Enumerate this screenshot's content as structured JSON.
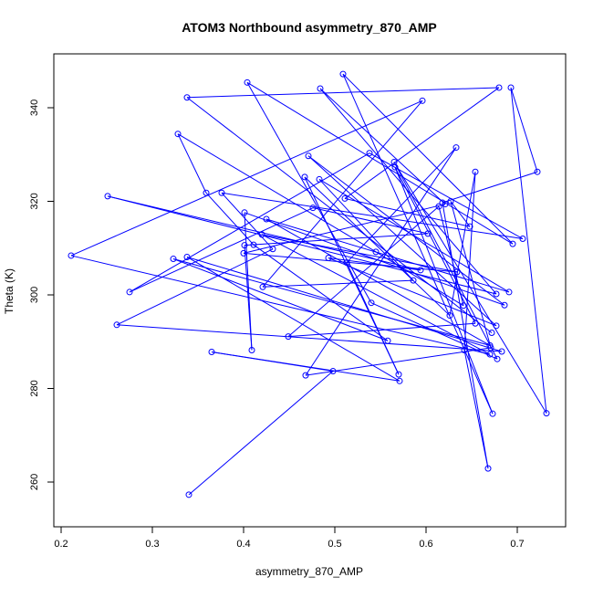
{
  "chart_data": {
    "type": "line",
    "title": "ATOM3 Northbound asymmetry_870_AMP",
    "xlabel": "asymmetry_870_AMP",
    "ylabel": "Theta (K)",
    "xlim": [
      0.2,
      0.75
    ],
    "ylim": [
      250,
      352
    ],
    "x_ticks": [
      "0.2",
      "0.3",
      "0.4",
      "0.5",
      "0.6",
      "0.7"
    ],
    "y_ticks": [
      "260",
      "280",
      "300",
      "320",
      "340"
    ],
    "line_color": "#0000ff",
    "marker": "open-circle",
    "grid": false,
    "series": [
      {
        "x": [
          0.34,
          0.498,
          0.365,
          0.571,
          0.338,
          0.683,
          0.261,
          0.432,
          0.376,
          0.706,
          0.538,
          0.275,
          0.476,
          0.602,
          0.401,
          0.409,
          0.401,
          0.686,
          0.471,
          0.677,
          0.493,
          0.594,
          0.251,
          0.677,
          0.484,
          0.621,
          0.4,
          0.634,
          0.42,
          0.67,
          0.211,
          0.596,
          0.421,
          0.586,
          0.483,
          0.691,
          0.425,
          0.67,
          0.323,
          0.558,
          0.411,
          0.359,
          0.328,
          0.545,
          0.641,
          0.614,
          0.449,
          0.654,
          0.566,
          0.673,
          0.509,
          0.695,
          0.404,
          0.54,
          0.678,
          0.565,
          0.732,
          0.693,
          0.722,
          0.618,
          0.668,
          0.642,
          0.654,
          0.626,
          0.467,
          0.57,
          0.513,
          0.633,
          0.468,
          0.671,
          0.627,
          0.648,
          0.511,
          0.68,
          0.338,
          0.672
        ],
        "y": [
          257.3,
          283.7,
          287.8,
          281.6,
          308.1,
          287.9,
          293.6,
          309.8,
          321.8,
          312.0,
          330.3,
          300.6,
          318.6,
          313.1,
          310.6,
          288.2,
          317.6,
          297.8,
          329.7,
          293.4,
          307.9,
          305.3,
          321.1,
          300.2,
          344.1,
          319.4,
          308.9,
          304.9,
          312.9,
          287.3,
          308.4,
          341.5,
          301.7,
          303.1,
          324.7,
          300.6,
          316.2,
          289.2,
          307.7,
          290.2,
          310.7,
          321.8,
          334.4,
          309.2,
          297.7,
          318.9,
          291.1,
          293.9,
          327.3,
          274.6,
          347.2,
          310.9,
          345.4,
          298.3,
          286.3,
          328.4,
          274.7,
          344.3,
          326.3,
          319.7,
          262.9,
          288.2,
          326.3,
          295.6,
          325.2,
          283.0,
          306.9,
          331.5,
          282.8,
          288.7,
          320.0,
          314.6,
          320.6,
          344.3,
          342.2,
          291.9
        ]
      }
    ]
  }
}
